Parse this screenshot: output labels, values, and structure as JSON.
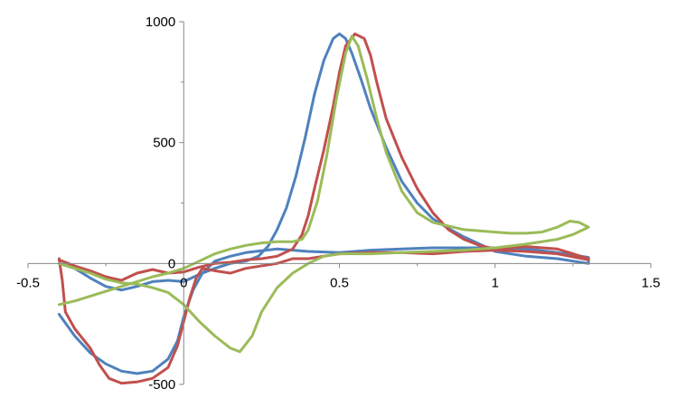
{
  "chart_data": {
    "type": "line",
    "title": "",
    "xlabel": "",
    "ylabel": "",
    "xlim": [
      -0.5,
      1.5
    ],
    "ylim": [
      -500,
      1000
    ],
    "x_ticks": [
      -0.5,
      0,
      0.5,
      1,
      1.5
    ],
    "y_ticks": [
      -500,
      0,
      500,
      1000
    ],
    "x_tick_labels": [
      "-0.5",
      "0",
      "0.5",
      "1",
      "1.5"
    ],
    "y_tick_labels": [
      "-500",
      "0",
      "500",
      "1000"
    ],
    "grid": false,
    "legend": "none",
    "series": [
      {
        "color": "#4f81bd",
        "points": [
          [
            -0.4,
            -210
          ],
          [
            -0.35,
            -300
          ],
          [
            -0.3,
            -370
          ],
          [
            -0.25,
            -415
          ],
          [
            -0.2,
            -445
          ],
          [
            -0.15,
            -455
          ],
          [
            -0.1,
            -445
          ],
          [
            -0.05,
            -395
          ],
          [
            -0.02,
            -320
          ],
          [
            0,
            -220
          ],
          [
            0.03,
            -110
          ],
          [
            0.06,
            -40
          ],
          [
            0.1,
            10
          ],
          [
            0.15,
            30
          ],
          [
            0.2,
            45
          ],
          [
            0.3,
            60
          ],
          [
            0.4,
            50
          ],
          [
            0.5,
            45
          ],
          [
            0.6,
            55
          ],
          [
            0.7,
            60
          ],
          [
            0.8,
            65
          ],
          [
            0.9,
            65
          ],
          [
            1.0,
            65
          ],
          [
            1.1,
            60
          ],
          [
            1.2,
            45
          ],
          [
            1.3,
            25
          ],
          [
            1.3,
            0
          ],
          [
            1.25,
            10
          ],
          [
            1.2,
            20
          ],
          [
            1.1,
            30
          ],
          [
            1.0,
            50
          ],
          [
            0.95,
            80
          ],
          [
            0.9,
            110
          ],
          [
            0.85,
            145
          ],
          [
            0.8,
            185
          ],
          [
            0.75,
            250
          ],
          [
            0.7,
            340
          ],
          [
            0.65,
            480
          ],
          [
            0.6,
            640
          ],
          [
            0.57,
            760
          ],
          [
            0.54,
            870
          ],
          [
            0.52,
            930
          ],
          [
            0.5,
            950
          ],
          [
            0.48,
            930
          ],
          [
            0.45,
            840
          ],
          [
            0.42,
            700
          ],
          [
            0.39,
            520
          ],
          [
            0.36,
            360
          ],
          [
            0.33,
            230
          ],
          [
            0.3,
            140
          ],
          [
            0.27,
            70
          ],
          [
            0.24,
            30
          ],
          [
            0.2,
            10
          ],
          [
            0.15,
            0
          ],
          [
            0.1,
            -20
          ],
          [
            0.05,
            -45
          ],
          [
            0,
            -75
          ],
          [
            -0.05,
            -70
          ],
          [
            -0.1,
            -75
          ],
          [
            -0.15,
            -95
          ],
          [
            -0.2,
            -110
          ],
          [
            -0.25,
            -95
          ],
          [
            -0.3,
            -60
          ],
          [
            -0.35,
            -20
          ],
          [
            -0.4,
            0
          ]
        ]
      },
      {
        "color": "#c0504d",
        "points": [
          [
            -0.4,
            20
          ],
          [
            -0.39,
            -70
          ],
          [
            -0.38,
            -200
          ],
          [
            -0.35,
            -270
          ],
          [
            -0.3,
            -350
          ],
          [
            -0.27,
            -420
          ],
          [
            -0.24,
            -475
          ],
          [
            -0.2,
            -495
          ],
          [
            -0.15,
            -490
          ],
          [
            -0.1,
            -475
          ],
          [
            -0.05,
            -430
          ],
          [
            -0.02,
            -340
          ],
          [
            0,
            -240
          ],
          [
            0.02,
            -140
          ],
          [
            0.04,
            -60
          ],
          [
            0.06,
            -20
          ],
          [
            0.1,
            -30
          ],
          [
            0.15,
            -40
          ],
          [
            0.2,
            -20
          ],
          [
            0.3,
            0
          ],
          [
            0.35,
            20
          ],
          [
            0.4,
            20
          ],
          [
            0.5,
            40
          ],
          [
            0.6,
            45
          ],
          [
            0.7,
            45
          ],
          [
            0.8,
            40
          ],
          [
            0.9,
            50
          ],
          [
            1.0,
            55
          ],
          [
            1.1,
            50
          ],
          [
            1.2,
            40
          ],
          [
            1.3,
            15
          ],
          [
            1.3,
            20
          ],
          [
            1.25,
            40
          ],
          [
            1.2,
            60
          ],
          [
            1.1,
            70
          ],
          [
            1.0,
            60
          ],
          [
            0.95,
            75
          ],
          [
            0.9,
            100
          ],
          [
            0.85,
            140
          ],
          [
            0.8,
            210
          ],
          [
            0.75,
            310
          ],
          [
            0.7,
            440
          ],
          [
            0.65,
            600
          ],
          [
            0.62,
            750
          ],
          [
            0.6,
            860
          ],
          [
            0.58,
            930
          ],
          [
            0.55,
            950
          ],
          [
            0.52,
            900
          ],
          [
            0.5,
            790
          ],
          [
            0.48,
            650
          ],
          [
            0.45,
            470
          ],
          [
            0.42,
            310
          ],
          [
            0.4,
            200
          ],
          [
            0.38,
            120
          ],
          [
            0.35,
            60
          ],
          [
            0.3,
            30
          ],
          [
            0.25,
            20
          ],
          [
            0.2,
            15
          ],
          [
            0.15,
            5
          ],
          [
            0.1,
            0
          ],
          [
            0.05,
            -15
          ],
          [
            0,
            -35
          ],
          [
            -0.05,
            -40
          ],
          [
            -0.1,
            -25
          ],
          [
            -0.15,
            -40
          ],
          [
            -0.2,
            -70
          ],
          [
            -0.25,
            -55
          ],
          [
            -0.3,
            -30
          ],
          [
            -0.35,
            -10
          ],
          [
            -0.4,
            15
          ]
        ]
      },
      {
        "color": "#9bbb59",
        "points": [
          [
            -0.4,
            -170
          ],
          [
            -0.35,
            -155
          ],
          [
            -0.3,
            -135
          ],
          [
            -0.25,
            -115
          ],
          [
            -0.2,
            -95
          ],
          [
            -0.15,
            -75
          ],
          [
            -0.1,
            -55
          ],
          [
            -0.05,
            -40
          ],
          [
            0,
            -20
          ],
          [
            0.05,
            10
          ],
          [
            0.1,
            40
          ],
          [
            0.15,
            60
          ],
          [
            0.2,
            75
          ],
          [
            0.25,
            85
          ],
          [
            0.3,
            90
          ],
          [
            0.35,
            90
          ],
          [
            0.38,
            100
          ],
          [
            0.4,
            140
          ],
          [
            0.43,
            260
          ],
          [
            0.46,
            450
          ],
          [
            0.49,
            680
          ],
          [
            0.52,
            870
          ],
          [
            0.54,
            940
          ],
          [
            0.56,
            900
          ],
          [
            0.59,
            760
          ],
          [
            0.62,
            600
          ],
          [
            0.65,
            460
          ],
          [
            0.7,
            300
          ],
          [
            0.75,
            210
          ],
          [
            0.8,
            170
          ],
          [
            0.9,
            140
          ],
          [
            1.0,
            130
          ],
          [
            1.05,
            125
          ],
          [
            1.1,
            125
          ],
          [
            1.15,
            130
          ],
          [
            1.2,
            150
          ],
          [
            1.24,
            175
          ],
          [
            1.27,
            170
          ],
          [
            1.3,
            150
          ],
          [
            1.25,
            120
          ],
          [
            1.2,
            100
          ],
          [
            1.1,
            80
          ],
          [
            1.0,
            65
          ],
          [
            0.9,
            55
          ],
          [
            0.8,
            50
          ],
          [
            0.7,
            45
          ],
          [
            0.6,
            40
          ],
          [
            0.5,
            40
          ],
          [
            0.45,
            30
          ],
          [
            0.4,
            0
          ],
          [
            0.35,
            -40
          ],
          [
            0.3,
            -100
          ],
          [
            0.25,
            -200
          ],
          [
            0.22,
            -300
          ],
          [
            0.18,
            -365
          ],
          [
            0.15,
            -350
          ],
          [
            0.1,
            -300
          ],
          [
            0.05,
            -240
          ],
          [
            0,
            -170
          ],
          [
            -0.05,
            -120
          ],
          [
            -0.1,
            -100
          ],
          [
            -0.15,
            -85
          ],
          [
            -0.2,
            -80
          ],
          [
            -0.25,
            -65
          ],
          [
            -0.3,
            -40
          ],
          [
            -0.35,
            -20
          ],
          [
            -0.4,
            0
          ]
        ]
      }
    ]
  }
}
